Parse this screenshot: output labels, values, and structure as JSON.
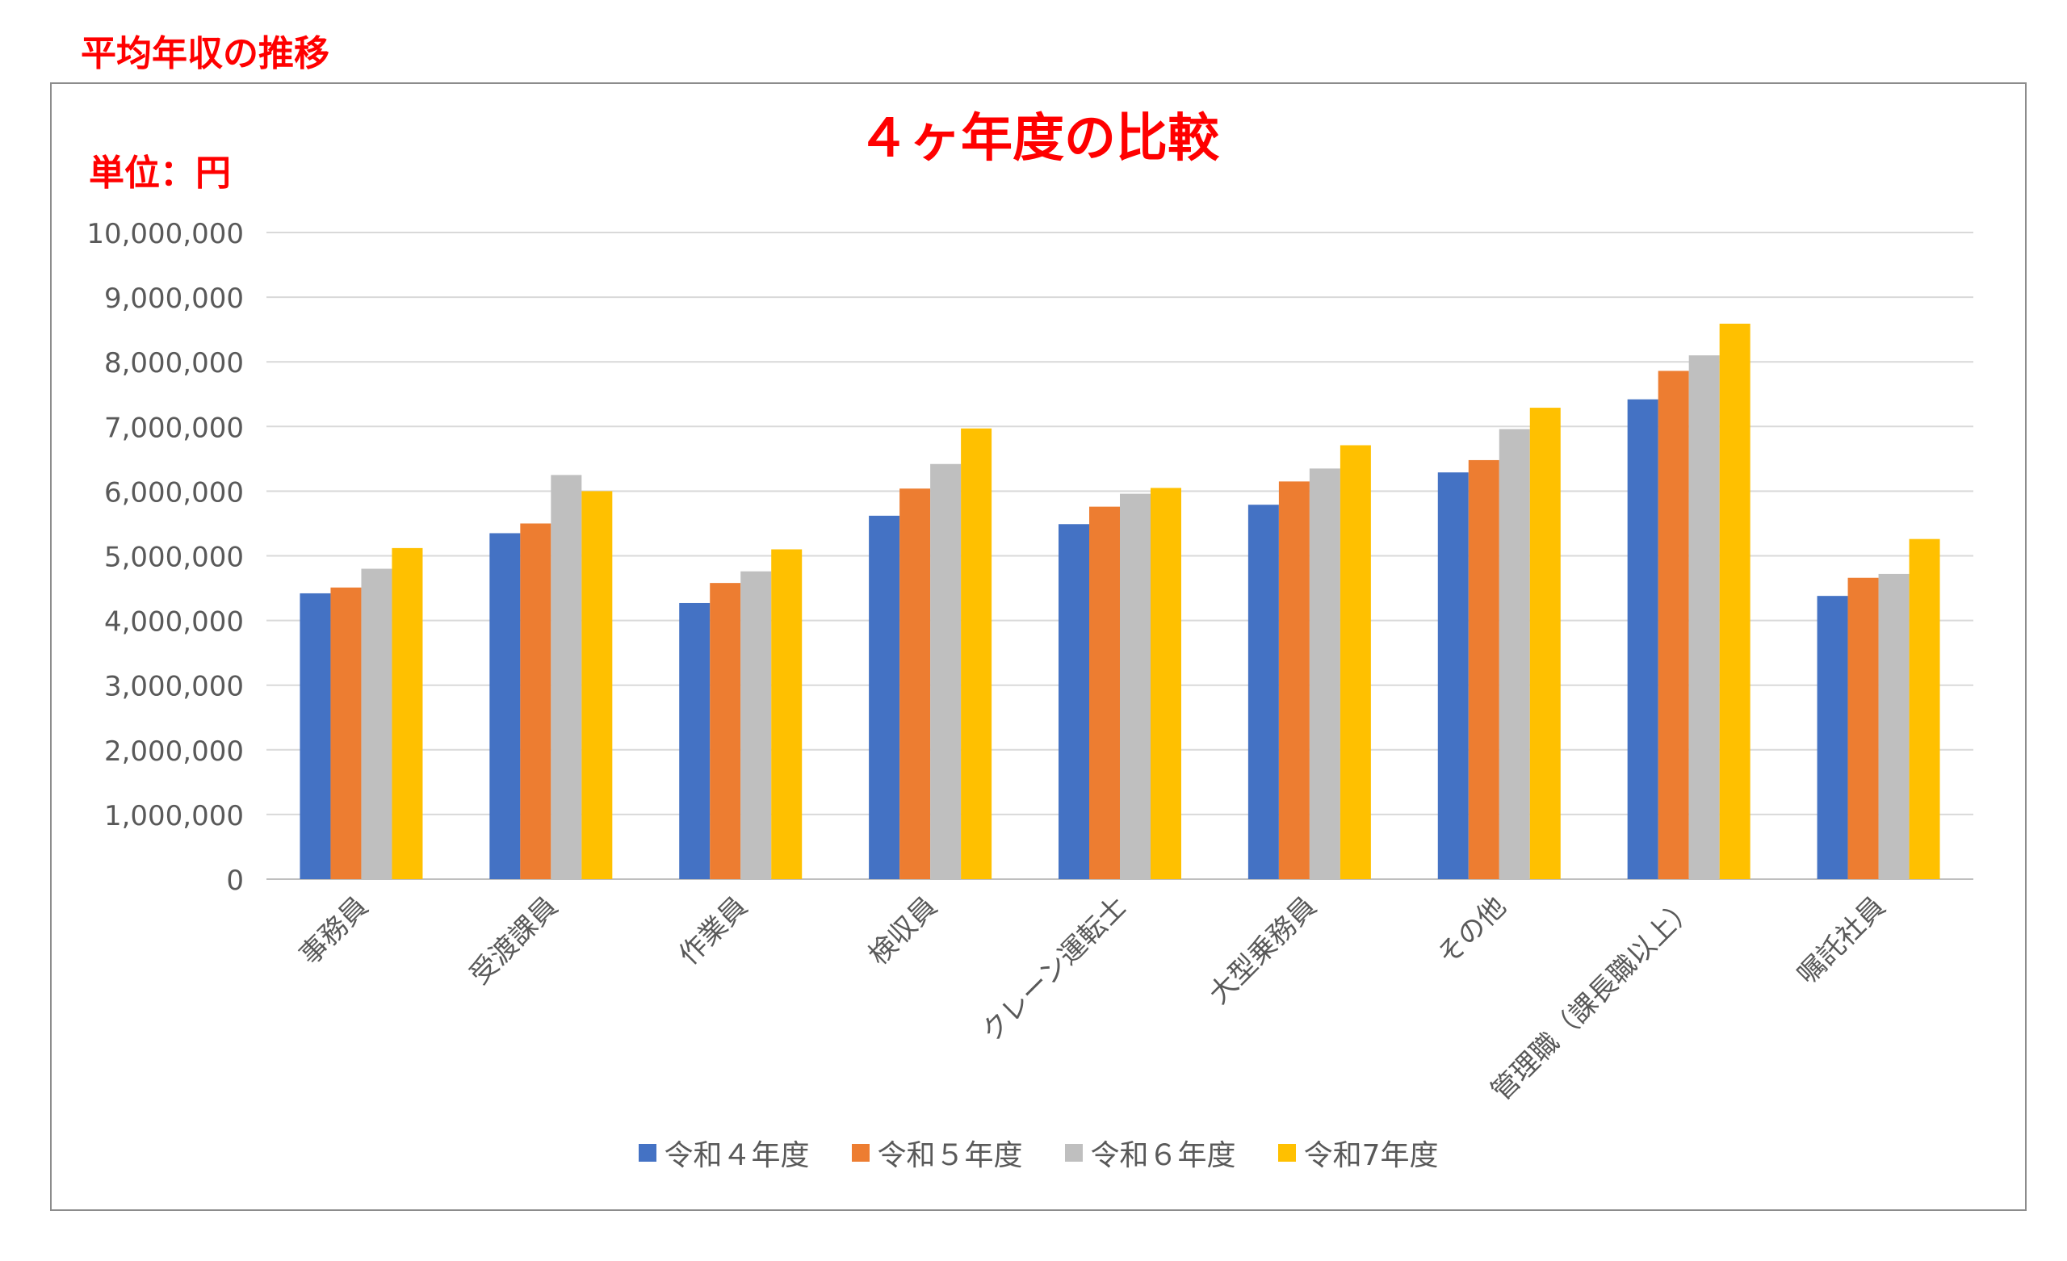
{
  "page_heading": "平均年収の推移",
  "chart_data": {
    "type": "bar",
    "title": "４ヶ年度の比較",
    "unit_label": "単位：円",
    "xlabel": "",
    "ylabel": "",
    "ylim": [
      0,
      10000000
    ],
    "yticks": [
      "10,000,000",
      "9,000,000",
      "8,000,000",
      "7,000,000",
      "6,000,000",
      "5,000,000",
      "4,000,000",
      "3,000,000",
      "2,000,000",
      "1,000,000",
      "0"
    ],
    "grid": true,
    "legend_position": "bottom",
    "categories": [
      "事務員",
      "受渡課員",
      "作業員",
      "検収員",
      "クレーン運転士",
      "大型乗務員",
      "その他",
      "管理職（課長職以上）",
      "嘱託社員"
    ],
    "series": [
      {
        "name": "令和４年度",
        "color": "#4472c4",
        "values": [
          4420000,
          5350000,
          4270000,
          5620000,
          5490000,
          5790000,
          6290000,
          7420000,
          4380000
        ]
      },
      {
        "name": "令和５年度",
        "color": "#ed7d31",
        "values": [
          4510000,
          5500000,
          4580000,
          6040000,
          5760000,
          6150000,
          6480000,
          7860000,
          4660000
        ]
      },
      {
        "name": "令和６年度",
        "color": "#bfbfbf",
        "values": [
          4800000,
          6250000,
          4760000,
          6420000,
          5960000,
          6350000,
          6960000,
          8100000,
          4720000
        ]
      },
      {
        "name": "令和7年度",
        "color": "#ffc000",
        "values": [
          5120000,
          6000000,
          5100000,
          6970000,
          6050000,
          6710000,
          7290000,
          8590000,
          5260000
        ]
      }
    ]
  }
}
